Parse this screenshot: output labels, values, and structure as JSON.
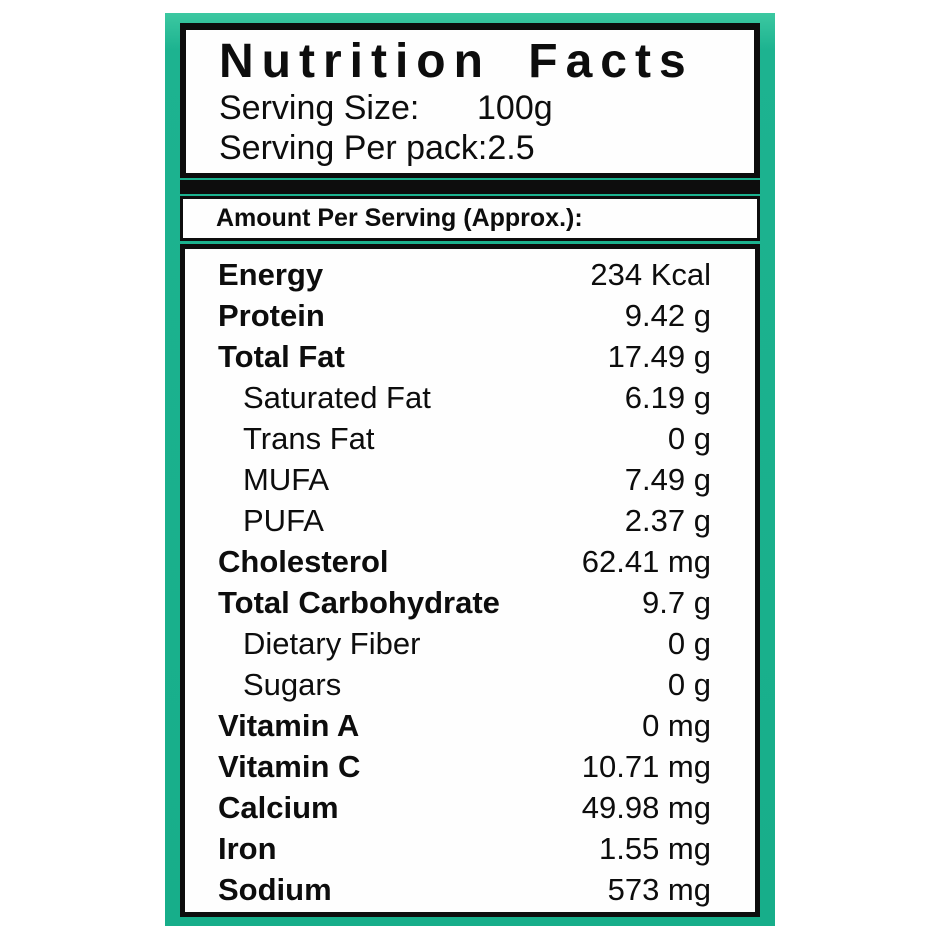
{
  "colors": {
    "frame_teal": "#1db390",
    "border_black": "#0d0d0d",
    "panel_white": "#fefefe"
  },
  "label": {
    "title": "Nutrition Facts",
    "serving_info": [
      {
        "label": "Serving Size:",
        "value": "100g"
      },
      {
        "label": "Serving Per pack:",
        "value": "2.5"
      }
    ],
    "section_header": "Amount Per Serving (Approx.):",
    "nutrients": [
      {
        "name": "Energy",
        "value": "234 Kcal",
        "bold": true,
        "indent": false
      },
      {
        "name": "Protein",
        "value": "9.42 g",
        "bold": true,
        "indent": false
      },
      {
        "name": "Total Fat",
        "value": "17.49 g",
        "bold": true,
        "indent": false
      },
      {
        "name": "Saturated Fat",
        "value": "6.19 g",
        "bold": false,
        "indent": true
      },
      {
        "name": "Trans Fat",
        "value": "0 g",
        "bold": false,
        "indent": true
      },
      {
        "name": "MUFA",
        "value": "7.49 g",
        "bold": false,
        "indent": true
      },
      {
        "name": "PUFA",
        "value": "2.37 g",
        "bold": false,
        "indent": true
      },
      {
        "name": "Cholesterol",
        "value": "62.41 mg",
        "bold": true,
        "indent": false
      },
      {
        "name": "Total Carbohydrate",
        "value": "9.7 g",
        "bold": true,
        "indent": false
      },
      {
        "name": "Dietary Fiber",
        "value": "0 g",
        "bold": false,
        "indent": true
      },
      {
        "name": "Sugars",
        "value": "0 g",
        "bold": false,
        "indent": true
      },
      {
        "name": "Vitamin A",
        "value": "0 mg",
        "bold": true,
        "indent": false
      },
      {
        "name": "Vitamin C",
        "value": "10.71 mg",
        "bold": true,
        "indent": false
      },
      {
        "name": "Calcium",
        "value": "49.98 mg",
        "bold": true,
        "indent": false
      },
      {
        "name": "Iron",
        "value": "1.55 mg",
        "bold": true,
        "indent": false
      },
      {
        "name": "Sodium",
        "value": "573 mg",
        "bold": true,
        "indent": false
      }
    ]
  }
}
